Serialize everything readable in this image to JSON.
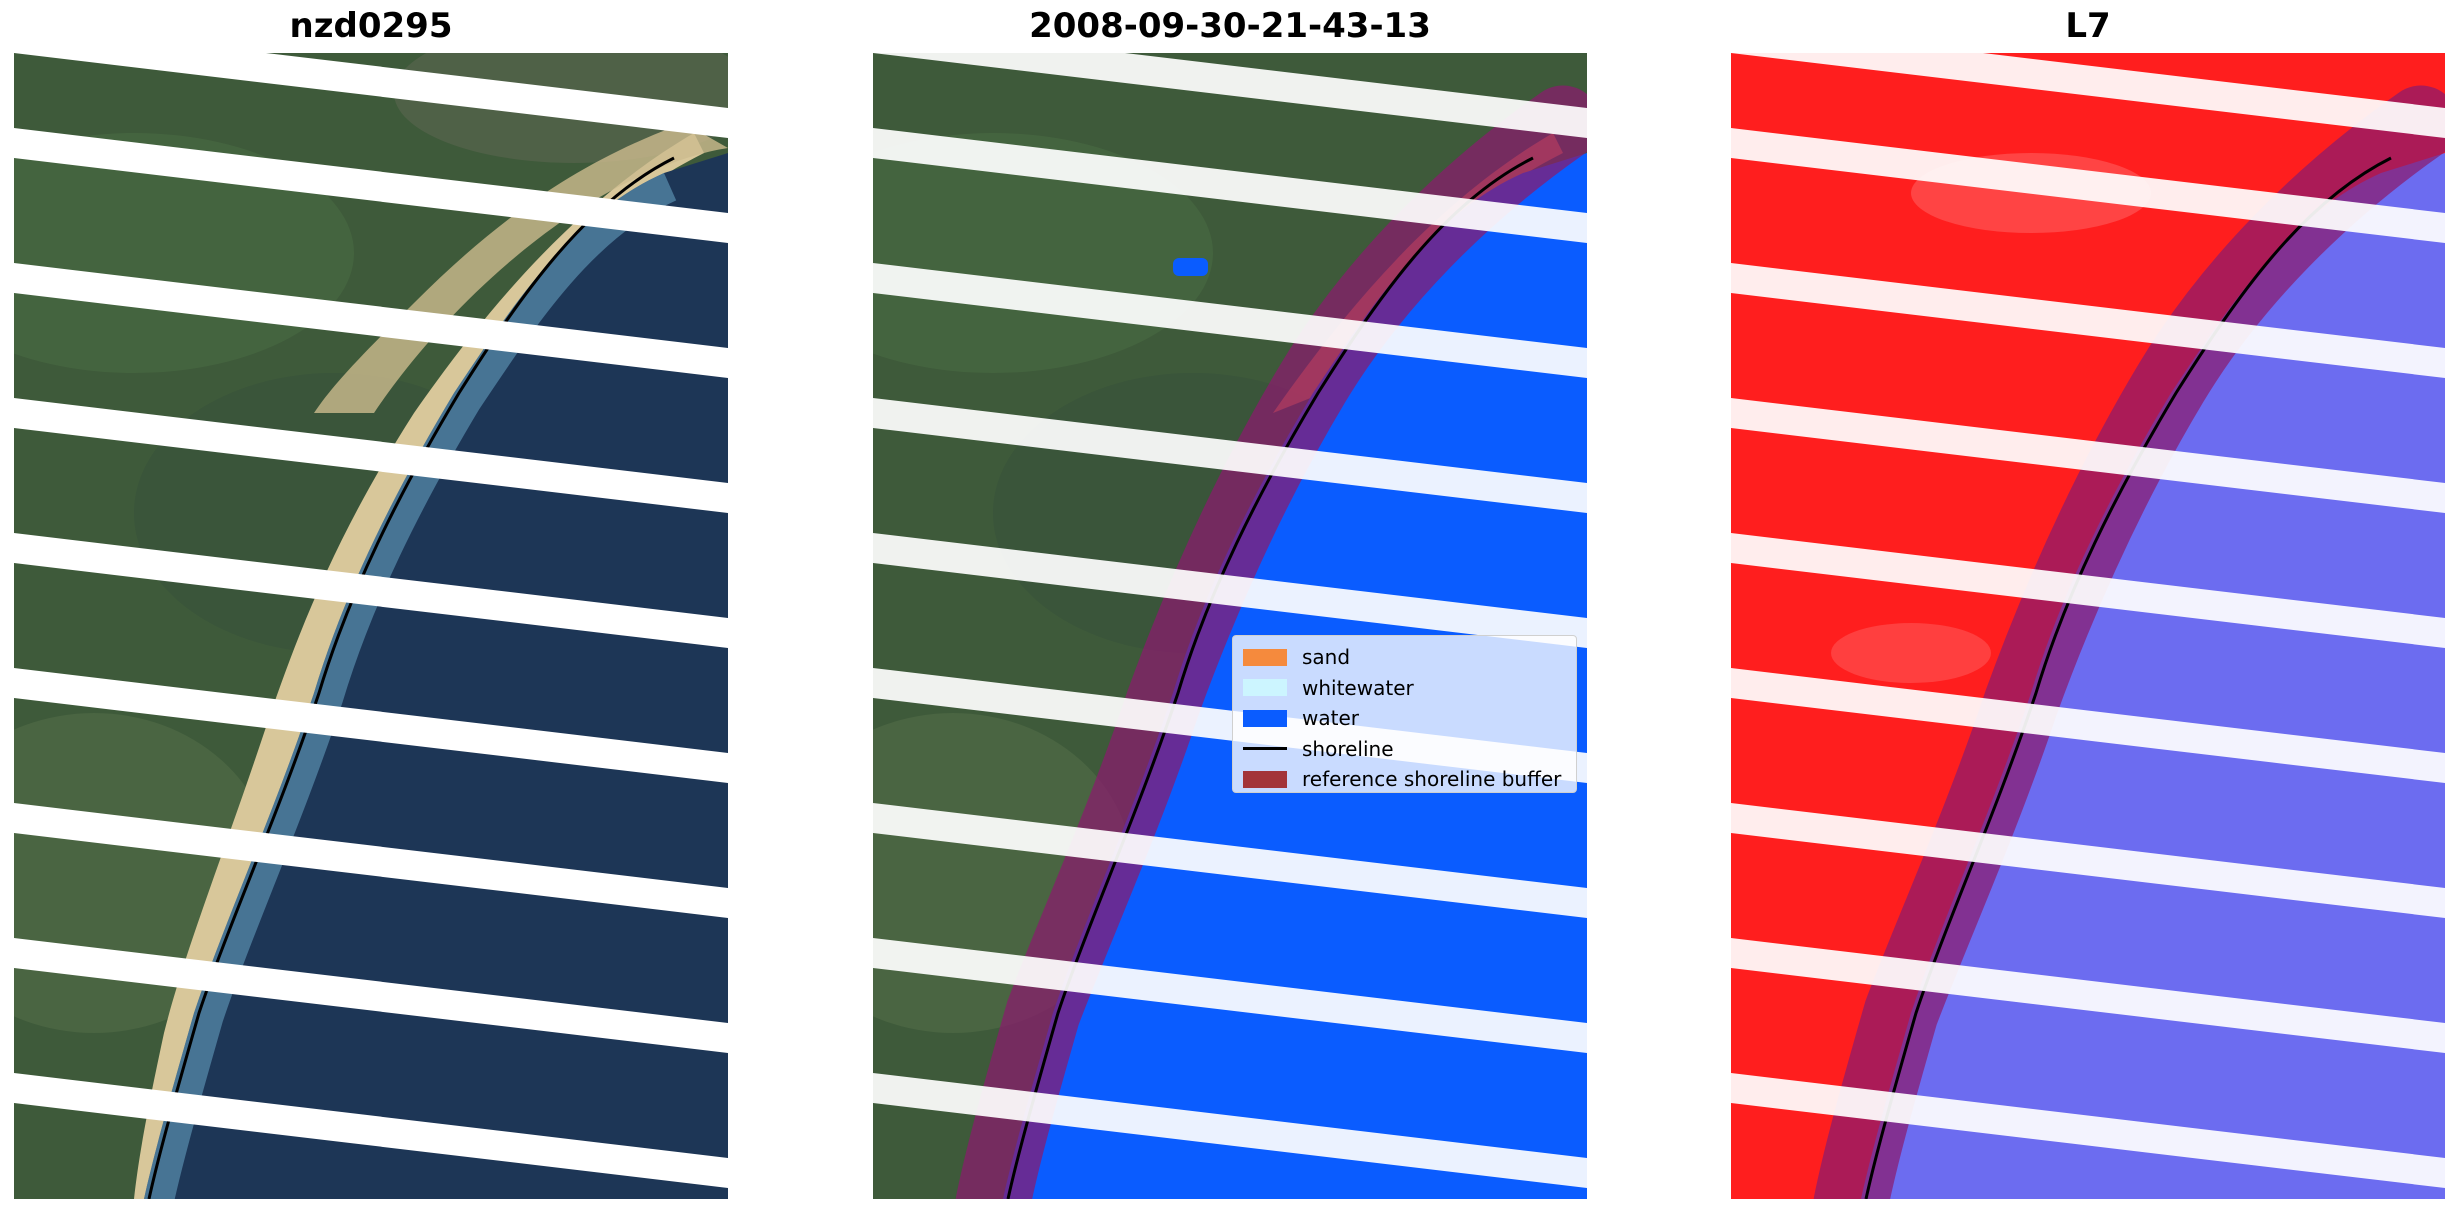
{
  "panels": [
    {
      "title": "nzd0295"
    },
    {
      "title": "2008-09-30-21-43-13"
    },
    {
      "title": "L7"
    }
  ],
  "legend": [
    {
      "label": "sand",
      "color": "#f58a3d",
      "kind": "patch"
    },
    {
      "label": "whitewater",
      "color": "#ccf5ff",
      "kind": "patch"
    },
    {
      "label": "water",
      "color": "#0a5cff",
      "kind": "patch"
    },
    {
      "label": "shoreline",
      "color": "#000000",
      "kind": "line"
    },
    {
      "label": "reference shoreline buffer",
      "color": "#a3343a",
      "kind": "patch"
    }
  ],
  "colors": {
    "land": "#3e5a3a",
    "sea": "#1d3656",
    "beach": "#d8c79a",
    "water_class": "#0a5cff",
    "buffer": "#8a1a6e",
    "index_land": "#ff1e1e",
    "index_water": "#6c6cf0",
    "stripe": "#ffffff"
  }
}
